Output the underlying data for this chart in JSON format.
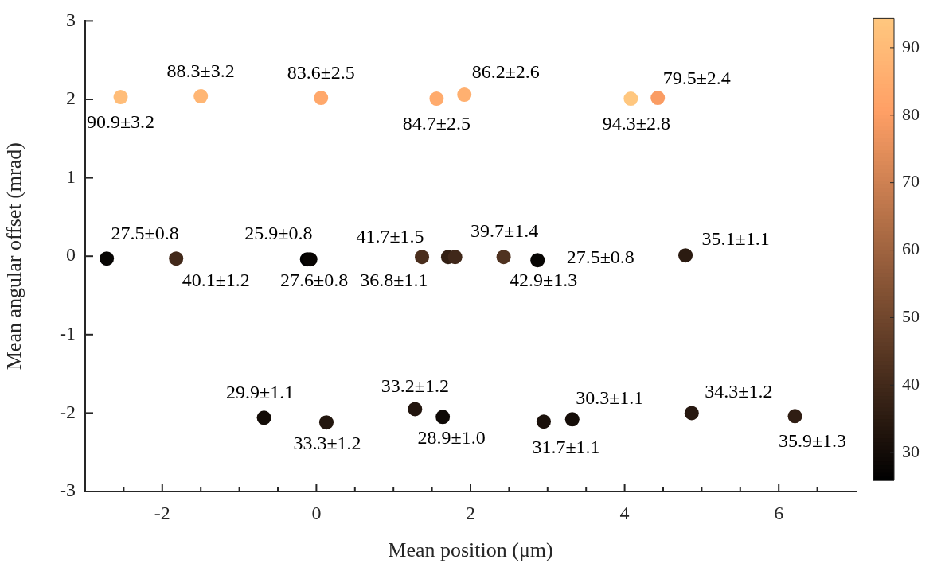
{
  "chart_data": {
    "type": "scatter",
    "xlabel": "Mean position (μm)",
    "ylabel": "Mean angular offset (mrad)",
    "x": [
      -2.54,
      -1.5,
      0.06,
      1.56,
      1.92,
      4.08,
      4.43,
      -2.72,
      -1.82,
      -0.12,
      -0.08,
      1.37,
      1.71,
      1.8,
      2.43,
      2.87,
      4.79,
      -0.68,
      0.13,
      1.28,
      1.64,
      2.95,
      3.32,
      4.87,
      6.21
    ],
    "values": [
      2.03,
      2.04,
      2.02,
      2.01,
      2.06,
      2.01,
      2.02,
      -0.03,
      -0.03,
      -0.04,
      -0.04,
      -0.01,
      -0.01,
      -0.01,
      -0.01,
      -0.05,
      0.01,
      -2.06,
      -2.12,
      -1.95,
      -2.05,
      -2.11,
      -2.08,
      -2.0,
      -2.04
    ],
    "cvalues": [
      90.9,
      88.3,
      83.6,
      84.7,
      86.2,
      94.3,
      79.5,
      27.5,
      40.1,
      25.9,
      27.6,
      41.7,
      36.8,
      39.7,
      42.9,
      27.5,
      35.1,
      29.9,
      33.3,
      33.2,
      28.9,
      31.7,
      30.3,
      34.3,
      35.9
    ],
    "clim": [
      25.9,
      94.3
    ],
    "cticks": [
      30,
      40,
      50,
      60,
      70,
      80,
      90
    ],
    "xlim": [
      -3,
      7
    ],
    "xticks": [
      {
        "value": -2.5,
        "label": null
      },
      -2,
      {
        "value": -1.5,
        "label": null
      },
      {
        "value": -1,
        "label": null
      },
      {
        "value": -0.5,
        "label": null
      },
      0,
      {
        "value": 0.5,
        "label": null
      },
      {
        "value": 1,
        "label": null
      },
      {
        "value": 1.5,
        "label": null
      },
      2,
      {
        "value": 2.5,
        "label": null
      },
      {
        "value": 3,
        "label": null
      },
      {
        "value": 3.5,
        "label": null
      },
      4,
      {
        "value": 4.5,
        "label": null
      },
      {
        "value": 5,
        "label": null
      },
      {
        "value": 5.5,
        "label": null
      },
      6,
      {
        "value": 6.5,
        "label": null
      }
    ],
    "ylim": [
      -3,
      3
    ],
    "yticks": [
      -3,
      -2,
      -1,
      0,
      1,
      2,
      3
    ],
    "grid": false,
    "legend": false,
    "marker": "circle",
    "annotations": [
      {
        "text": "90.9±3.2",
        "x": -2.54,
        "y": 2.03
      },
      {
        "text": "88.3±3.2",
        "x": -1.5,
        "y": 2.04
      },
      {
        "text": "83.6±2.5",
        "x": 0.06,
        "y": 2.02
      },
      {
        "text": "84.7±2.5",
        "x": 1.56,
        "y": 2.01
      },
      {
        "text": "86.2±2.6",
        "x": 1.92,
        "y": 2.06
      },
      {
        "text": "94.3±2.8",
        "x": 4.08,
        "y": 2.01
      },
      {
        "text": "79.5±2.4",
        "x": 4.43,
        "y": 2.02
      },
      {
        "text": "27.5±0.8",
        "x": -2.72,
        "y": -0.03
      },
      {
        "text": "40.1±1.2",
        "x": -1.82,
        "y": -0.03
      },
      {
        "text": "25.9±0.8",
        "x": -0.12,
        "y": -0.04
      },
      {
        "text": "27.6±0.8",
        "x": -0.08,
        "y": -0.04
      },
      {
        "text": "41.7±1.5",
        "x": 1.37,
        "y": -0.01
      },
      {
        "text": "36.8±1.1",
        "x": 1.71,
        "y": -0.01
      },
      {
        "text": "39.7±1.4",
        "x": 1.8,
        "y": -0.01
      },
      {
        "text": "42.9±1.3",
        "x": 2.43,
        "y": -0.01
      },
      {
        "text": "27.5±0.8",
        "x": 2.87,
        "y": -0.05
      },
      {
        "text": "35.1±1.1",
        "x": 4.79,
        "y": 0.01
      },
      {
        "text": "29.9±1.1",
        "x": -0.68,
        "y": -2.06
      },
      {
        "text": "33.3±1.2",
        "x": 0.13,
        "y": -2.12
      },
      {
        "text": "33.2±1.2",
        "x": 1.28,
        "y": -1.95
      },
      {
        "text": "28.9±1.0",
        "x": 1.64,
        "y": -2.05
      },
      {
        "text": "31.7±1.1",
        "x": 2.95,
        "y": -2.11
      },
      {
        "text": "30.3±1.1",
        "x": 3.32,
        "y": -2.08
      },
      {
        "text": "34.3±1.2",
        "x": 4.87,
        "y": -2.0
      },
      {
        "text": "35.9±1.3",
        "x": 6.21,
        "y": -2.04
      }
    ]
  }
}
